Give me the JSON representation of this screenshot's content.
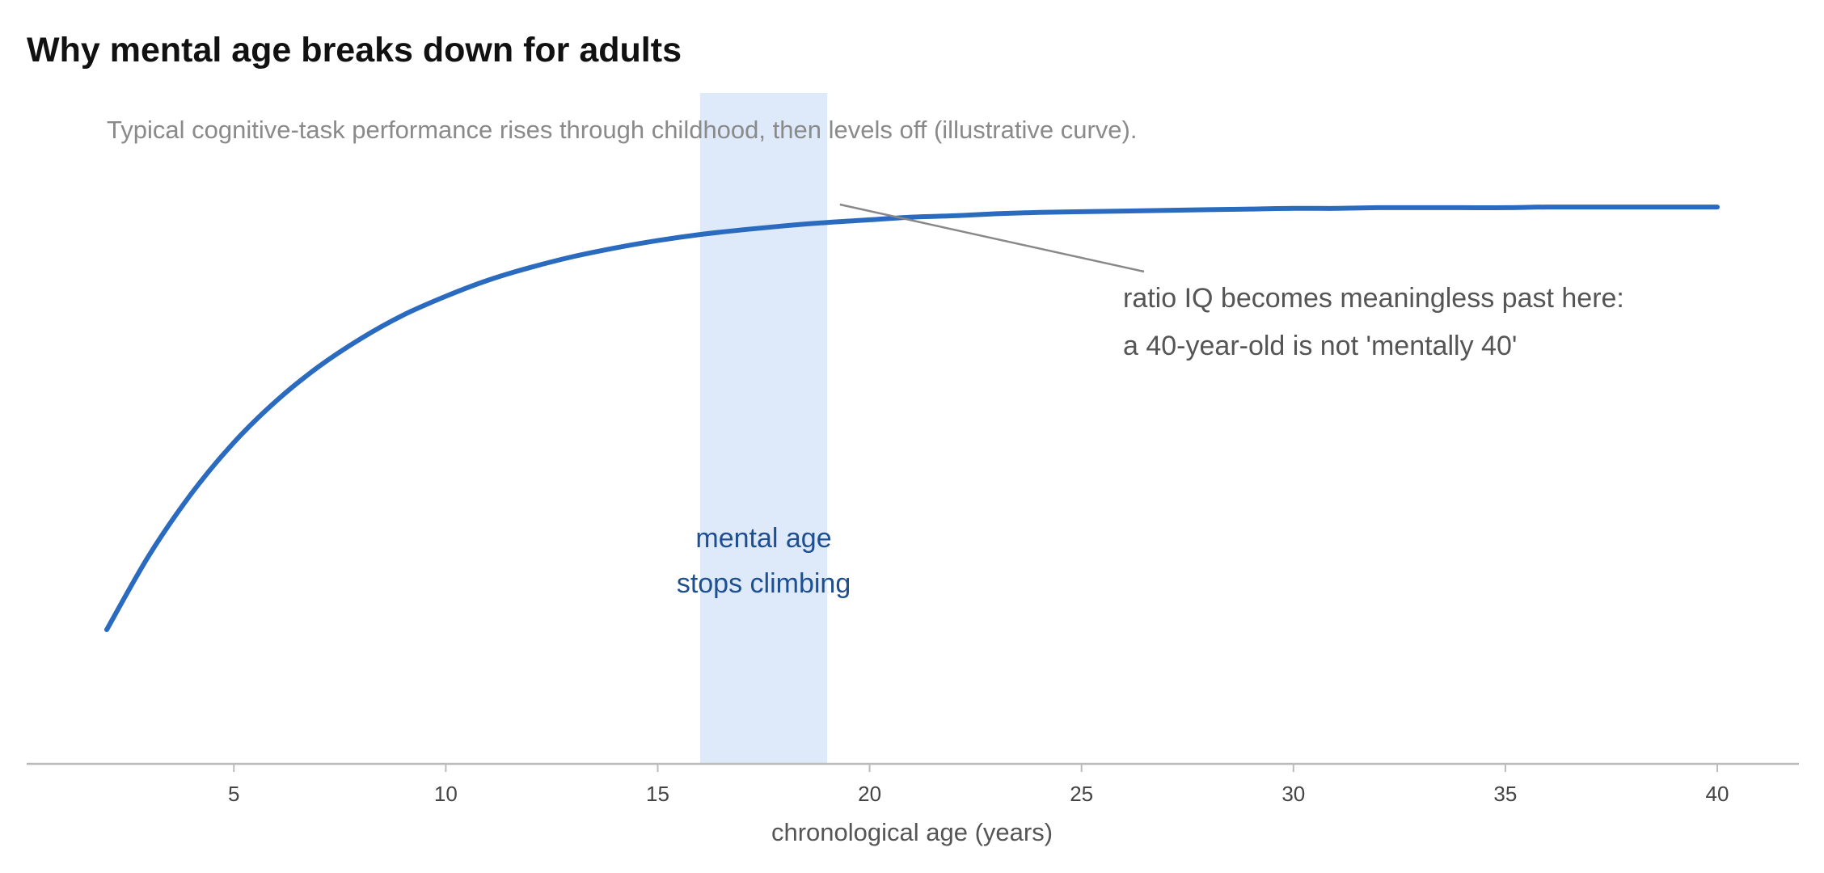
{
  "chart_data": {
    "type": "line",
    "title": "Why mental age breaks down for adults",
    "subtitle": "Typical cognitive-task performance rises through childhood, then levels off (illustrative curve).",
    "xlabel": "chronological age (years)",
    "ylabel": "",
    "xlim": [
      0,
      42
    ],
    "ylim": [
      0,
      1
    ],
    "x_ticks": [
      5,
      10,
      15,
      20,
      25,
      30,
      35,
      40
    ],
    "y_ticks": [],
    "grid": false,
    "series": [
      {
        "color": "#2a6bbf",
        "x": [
          2,
          3,
          4,
          5,
          6,
          7,
          8,
          9,
          10,
          11,
          12,
          13,
          14,
          15,
          16,
          17,
          18,
          19,
          20,
          21,
          22,
          23,
          24,
          25,
          26,
          27,
          28,
          29,
          30,
          31,
          32,
          33,
          34,
          35,
          36,
          37,
          38,
          39,
          40
        ],
        "y": [
          0.2,
          0.311,
          0.403,
          0.479,
          0.541,
          0.592,
          0.634,
          0.669,
          0.697,
          0.721,
          0.74,
          0.756,
          0.769,
          0.78,
          0.789,
          0.796,
          0.802,
          0.807,
          0.811,
          0.815,
          0.817,
          0.82,
          0.822,
          0.823,
          0.824,
          0.825,
          0.826,
          0.827,
          0.828,
          0.828,
          0.829,
          0.829,
          0.829,
          0.829,
          0.83,
          0.83,
          0.83,
          0.83,
          0.83
        ]
      }
    ],
    "band": {
      "x_start": 16,
      "x_end": 19,
      "color": "#deeaf9",
      "label_lines": [
        "mental age",
        "stops climbing"
      ]
    },
    "annotation": {
      "lines": [
        "ratio IQ becomes meaningless past here:",
        "a 40-year-old is not 'mentally 40'"
      ],
      "points_to": {
        "x": 19.3,
        "y": 0.82
      }
    }
  }
}
